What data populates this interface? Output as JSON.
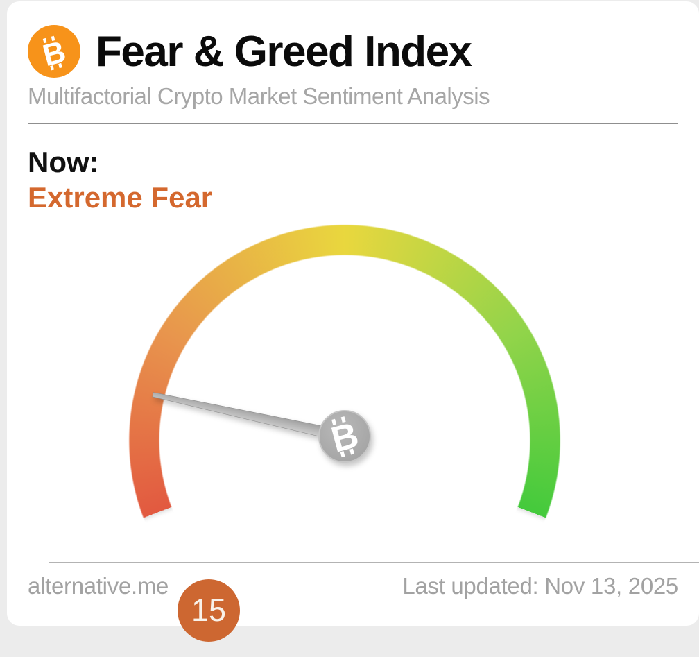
{
  "colors": {
    "page_background": "#ececec",
    "card_background": "#ffffff",
    "bitcoin_orange": "#f7931a",
    "classification_color": "#d4682e",
    "badge_color": "#cd6731",
    "needle_gray": "#a9a9a9",
    "subtitle_gray": "#a6a6a6",
    "footer_gray": "#a2a2a2"
  },
  "header": {
    "title": "Fear & Greed Index",
    "subtitle": "Multifactorial Crypto Market Sentiment Analysis"
  },
  "status": {
    "now_label": "Now:",
    "classification": "Extreme Fear"
  },
  "gauge": {
    "value": 15,
    "value_label": "15",
    "min": 0,
    "max": 100,
    "start_angle_css_deg": 249,
    "sweep_deg": 222,
    "arc_colors": [
      "#e25940",
      "#e8954d",
      "#e9d73e",
      "#93d44a",
      "#44ca3c"
    ],
    "arc_stops_deg": [
      0,
      52,
      111,
      168,
      222
    ]
  },
  "footer": {
    "source": "alternative.me",
    "last_updated": "Last updated: Nov 13, 2025"
  },
  "chart_data": {
    "type": "gauge",
    "title": "Fear & Greed Index",
    "subtitle": "Multifactorial Crypto Market Sentiment Analysis",
    "value": 15,
    "range": [
      0,
      100
    ],
    "classification": "Extreme Fear",
    "scale_colors_low_to_high": [
      "#e25940",
      "#e8954d",
      "#e9d73e",
      "#93d44a",
      "#44ca3c"
    ],
    "needle_position_pct": 15,
    "last_updated": "Nov 13, 2025",
    "source": "alternative.me"
  }
}
